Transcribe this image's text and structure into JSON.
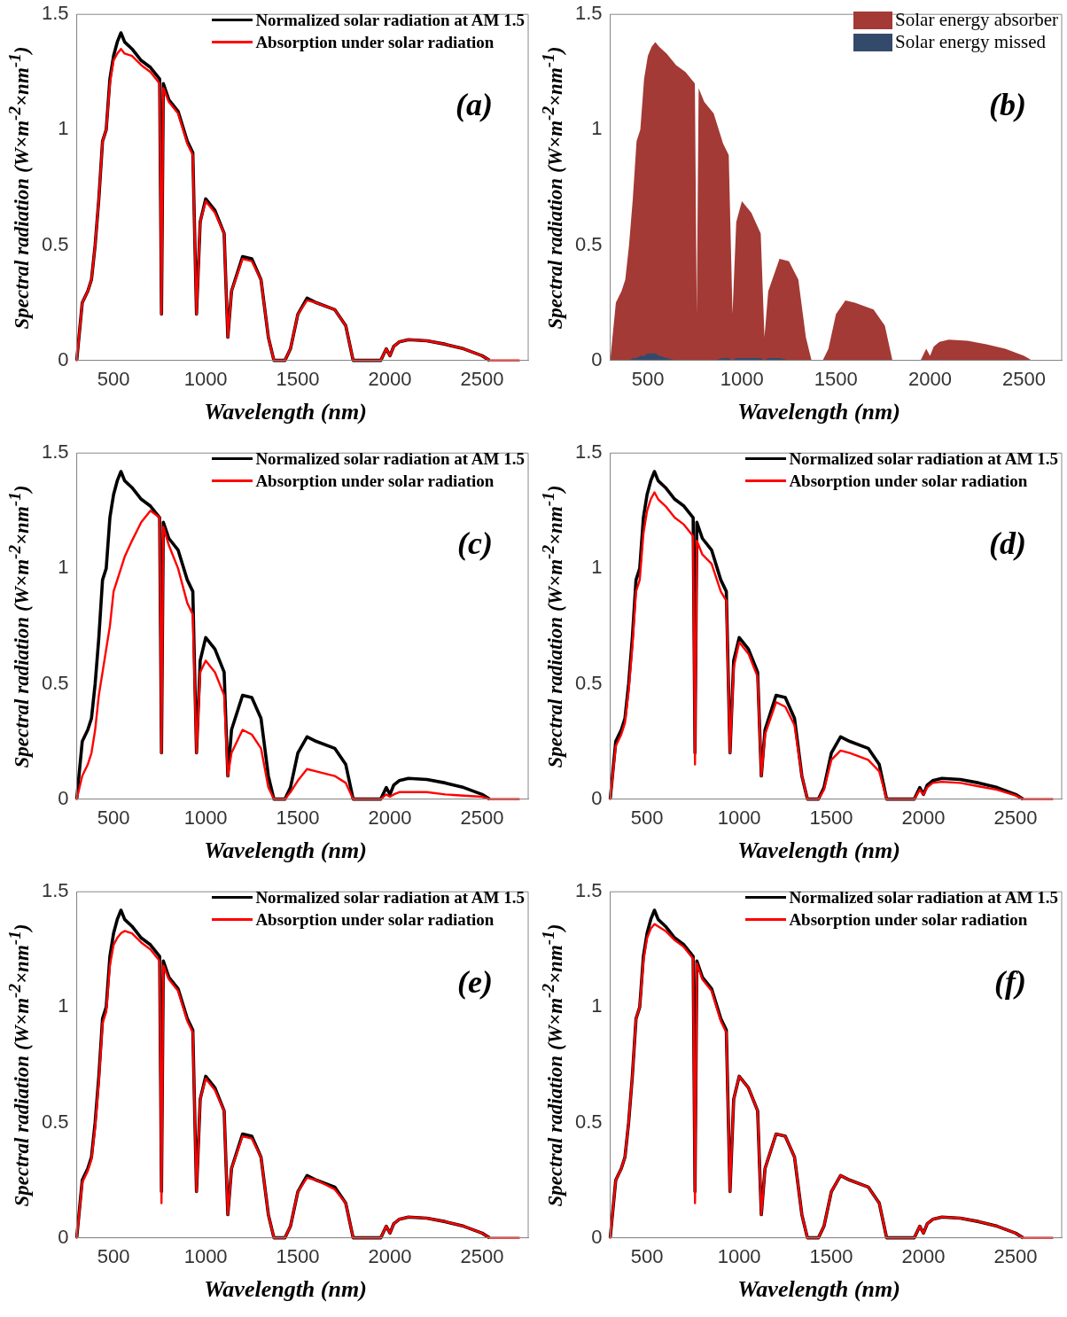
{
  "chart_data": [
    {
      "type": "line",
      "xlabel": "Wavelength (nm)",
      "ylabel": "Spectral radiation (W×m$^{-2}$×nm$^{-1}$)",
      "annotations": [
        "(a)"
      ],
      "xlim": [
        300,
        2750
      ],
      "ylim": [
        0,
        1.5
      ],
      "xticks": [
        500,
        1000,
        1500,
        2000,
        2500
      ],
      "yticks": [
        0,
        0.5,
        1,
        1.5
      ],
      "legend": "top right",
      "marker": "none",
      "x": [
        300,
        330,
        360,
        380,
        400,
        420,
        440,
        460,
        480,
        500,
        520,
        540,
        560,
        600,
        650,
        700,
        750,
        760,
        770,
        800,
        850,
        900,
        930,
        950,
        970,
        1000,
        1050,
        1100,
        1120,
        1140,
        1200,
        1250,
        1300,
        1340,
        1370,
        1430,
        1460,
        1500,
        1550,
        1600,
        1700,
        1760,
        1800,
        1950,
        1980,
        2000,
        2020,
        2050,
        2100,
        2200,
        2300,
        2400,
        2500,
        2540,
        2700
      ],
      "series": [
        {
          "name": "Normalized solar radiation at AM 1.5",
          "color": "#000000",
          "values": [
            0,
            0.25,
            0.3,
            0.35,
            0.5,
            0.7,
            0.95,
            1.0,
            1.22,
            1.32,
            1.38,
            1.42,
            1.38,
            1.35,
            1.3,
            1.27,
            1.22,
            0.2,
            1.2,
            1.13,
            1.08,
            0.95,
            0.9,
            0.2,
            0.6,
            0.7,
            0.65,
            0.55,
            0.1,
            0.3,
            0.45,
            0.44,
            0.35,
            0.1,
            0,
            0,
            0.05,
            0.2,
            0.27,
            0.25,
            0.22,
            0.15,
            0,
            0,
            0.05,
            0.02,
            0.06,
            0.08,
            0.09,
            0.085,
            0.07,
            0.05,
            0.02,
            0,
            null
          ]
        },
        {
          "name": "Absorption under solar radiation",
          "color": "#ff0000",
          "values": [
            0,
            0.25,
            0.3,
            0.35,
            0.5,
            0.7,
            0.95,
            1.0,
            1.2,
            1.3,
            1.33,
            1.35,
            1.33,
            1.32,
            1.28,
            1.25,
            1.2,
            0.2,
            1.18,
            1.12,
            1.07,
            0.94,
            0.89,
            0.2,
            0.6,
            0.69,
            0.64,
            0.55,
            0.1,
            0.3,
            0.44,
            0.43,
            0.35,
            0.1,
            0,
            0,
            0.05,
            0.2,
            0.26,
            0.25,
            0.22,
            0.15,
            0,
            0,
            0.05,
            0.02,
            0.06,
            0.08,
            0.09,
            0.085,
            0.07,
            0.05,
            0.02,
            0,
            0
          ]
        }
      ]
    },
    {
      "type": "area",
      "xlabel": "Wavelength (nm)",
      "ylabel": "Spectral radiation (W×m$^{-2}$×nm$^{-1}$)",
      "annotations": [
        "(b)"
      ],
      "xlim": [
        300,
        2700
      ],
      "ylim": [
        0,
        1.5
      ],
      "xticks": [
        500,
        1000,
        1500,
        2000,
        2500
      ],
      "yticks": [
        0,
        0.5,
        1,
        1.5
      ],
      "legend": "top right",
      "marker": "none",
      "x": [
        300,
        330,
        360,
        380,
        400,
        420,
        440,
        460,
        480,
        500,
        520,
        540,
        560,
        600,
        650,
        700,
        750,
        760,
        770,
        800,
        850,
        900,
        930,
        950,
        970,
        1000,
        1050,
        1100,
        1120,
        1140,
        1200,
        1250,
        1300,
        1340,
        1370,
        1430,
        1460,
        1500,
        1550,
        1600,
        1700,
        1760,
        1800,
        1950,
        1980,
        2000,
        2020,
        2050,
        2100,
        2200,
        2300,
        2400,
        2500,
        2540,
        2700
      ],
      "series": [
        {
          "name": "Solar energy absorber",
          "color": "#a33a35",
          "values": [
            0,
            0.25,
            0.3,
            0.35,
            0.5,
            0.7,
            0.95,
            1.0,
            1.22,
            1.32,
            1.36,
            1.38,
            1.36,
            1.33,
            1.28,
            1.25,
            1.2,
            0.2,
            1.18,
            1.12,
            1.07,
            0.94,
            0.89,
            0.2,
            0.6,
            0.69,
            0.64,
            0.55,
            0.1,
            0.3,
            0.44,
            0.43,
            0.35,
            0.1,
            0,
            0,
            0.05,
            0.2,
            0.26,
            0.25,
            0.22,
            0.15,
            0,
            0,
            0.05,
            0.02,
            0.06,
            0.08,
            0.09,
            0.085,
            0.07,
            0.05,
            0.02,
            0,
            0
          ]
        },
        {
          "name": "Solar energy missed",
          "color": "#344a6b",
          "values": [
            0,
            0,
            0,
            0,
            0,
            0.01,
            0.01,
            0.02,
            0.02,
            0.03,
            0.03,
            0.03,
            0.02,
            0.01,
            0,
            0,
            0,
            0,
            0,
            0,
            0,
            0.01,
            0.01,
            0,
            0.01,
            0.01,
            0.01,
            0.01,
            0,
            0.01,
            0.01,
            0,
            0,
            0,
            0,
            0,
            0,
            0,
            0,
            0,
            0,
            0,
            0,
            0,
            0,
            0,
            0,
            0,
            0,
            0,
            0,
            0,
            0,
            0,
            0
          ]
        }
      ]
    },
    {
      "type": "line",
      "xlabel": "Wavelength (nm)",
      "ylabel": "Spectral radiation (W×m$^{-2}$×nm$^{-1}$)",
      "annotations": [
        "(c)"
      ],
      "xlim": [
        300,
        2750
      ],
      "ylim": [
        0,
        1.5
      ],
      "xticks": [
        500,
        1000,
        1500,
        2000,
        2500
      ],
      "yticks": [
        0,
        0.5,
        1,
        1.5
      ],
      "legend": "top right",
      "marker": "none",
      "x": [
        300,
        330,
        360,
        380,
        400,
        420,
        440,
        460,
        480,
        500,
        520,
        540,
        560,
        600,
        650,
        700,
        750,
        760,
        770,
        800,
        850,
        900,
        930,
        950,
        970,
        1000,
        1050,
        1100,
        1120,
        1140,
        1200,
        1250,
        1300,
        1340,
        1370,
        1430,
        1460,
        1500,
        1550,
        1600,
        1700,
        1760,
        1800,
        1950,
        1980,
        2000,
        2020,
        2050,
        2100,
        2200,
        2300,
        2400,
        2500,
        2540,
        2700
      ],
      "series": [
        {
          "name": "Normalized solar radiation at AM 1.5",
          "color": "#000000",
          "values": [
            0,
            0.25,
            0.3,
            0.35,
            0.5,
            0.7,
            0.95,
            1.0,
            1.22,
            1.32,
            1.38,
            1.42,
            1.38,
            1.35,
            1.3,
            1.27,
            1.22,
            0.2,
            1.2,
            1.13,
            1.08,
            0.95,
            0.9,
            0.2,
            0.6,
            0.7,
            0.65,
            0.55,
            0.1,
            0.3,
            0.45,
            0.44,
            0.35,
            0.1,
            0,
            0,
            0.05,
            0.2,
            0.27,
            0.25,
            0.22,
            0.15,
            0,
            0,
            0.05,
            0.02,
            0.06,
            0.08,
            0.09,
            0.085,
            0.07,
            0.05,
            0.02,
            0,
            null
          ]
        },
        {
          "name": "Absorption under solar radiation",
          "color": "#ff0000",
          "values": [
            0,
            0.1,
            0.15,
            0.2,
            0.3,
            0.45,
            0.55,
            0.65,
            0.75,
            0.9,
            0.95,
            1.0,
            1.05,
            1.12,
            1.2,
            1.25,
            1.22,
            0.2,
            1.18,
            1.1,
            1.0,
            0.85,
            0.8,
            0.2,
            0.55,
            0.6,
            0.55,
            0.45,
            0.1,
            0.2,
            0.3,
            0.28,
            0.22,
            0.05,
            0,
            0,
            0.03,
            0.08,
            0.13,
            0.12,
            0.1,
            0.07,
            0,
            0,
            0.02,
            0.01,
            0.02,
            0.03,
            0.03,
            0.03,
            0.02,
            0.015,
            0.01,
            0,
            0
          ]
        }
      ]
    },
    {
      "type": "line",
      "xlabel": "Wavelength (nm)",
      "ylabel": "Spectral radiation (W×m$^{-2}$×nm$^{-1}$)",
      "annotations": [
        "(d)"
      ],
      "xlim": [
        300,
        2750
      ],
      "ylim": [
        0,
        1.5
      ],
      "xticks": [
        500,
        1000,
        1500,
        2000,
        2500
      ],
      "yticks": [
        0,
        0.5,
        1,
        1.5
      ],
      "legend": "top right",
      "marker": "none",
      "x": [
        300,
        330,
        360,
        380,
        400,
        420,
        440,
        460,
        480,
        500,
        520,
        540,
        560,
        600,
        650,
        700,
        750,
        760,
        770,
        800,
        850,
        900,
        930,
        950,
        970,
        1000,
        1050,
        1100,
        1120,
        1140,
        1200,
        1250,
        1300,
        1340,
        1370,
        1430,
        1460,
        1500,
        1550,
        1600,
        1700,
        1760,
        1800,
        1950,
        1980,
        2000,
        2020,
        2050,
        2100,
        2200,
        2300,
        2400,
        2500,
        2540,
        2700
      ],
      "series": [
        {
          "name": "Normalized solar radiation at AM 1.5",
          "color": "#000000",
          "values": [
            0,
            0.25,
            0.3,
            0.35,
            0.5,
            0.7,
            0.95,
            1.0,
            1.22,
            1.32,
            1.38,
            1.42,
            1.38,
            1.35,
            1.3,
            1.27,
            1.22,
            0.2,
            1.2,
            1.13,
            1.08,
            0.95,
            0.9,
            0.2,
            0.6,
            0.7,
            0.65,
            0.55,
            0.1,
            0.3,
            0.45,
            0.44,
            0.35,
            0.1,
            0,
            0,
            0.05,
            0.2,
            0.27,
            0.25,
            0.22,
            0.15,
            0,
            0,
            0.05,
            0.02,
            0.06,
            0.08,
            0.09,
            0.085,
            0.07,
            0.05,
            0.02,
            0,
            null
          ]
        },
        {
          "name": "Absorption under solar radiation",
          "color": "#ff0000",
          "values": [
            0,
            0.23,
            0.28,
            0.33,
            0.47,
            0.66,
            0.9,
            0.95,
            1.15,
            1.25,
            1.3,
            1.33,
            1.3,
            1.27,
            1.22,
            1.19,
            1.14,
            0.15,
            1.12,
            1.06,
            1.02,
            0.9,
            0.86,
            0.2,
            0.57,
            0.68,
            0.63,
            0.53,
            0.1,
            0.28,
            0.42,
            0.4,
            0.32,
            0.1,
            0,
            0,
            0.04,
            0.17,
            0.21,
            0.2,
            0.17,
            0.12,
            0,
            0,
            0.04,
            0.02,
            0.05,
            0.07,
            0.075,
            0.07,
            0.055,
            0.04,
            0.015,
            0,
            0
          ]
        }
      ]
    },
    {
      "type": "line",
      "xlabel": "Wavelength (nm)",
      "ylabel": "Spectral radiation (W×m$^{-2}$×nm$^{-1}$)",
      "annotations": [
        "(e)"
      ],
      "xlim": [
        300,
        2750
      ],
      "ylim": [
        0,
        1.5
      ],
      "xticks": [
        500,
        1000,
        1500,
        2000,
        2500
      ],
      "yticks": [
        0,
        0.5,
        1,
        1.5
      ],
      "legend": "top right",
      "marker": "none",
      "x": [
        300,
        330,
        360,
        380,
        400,
        420,
        440,
        460,
        480,
        500,
        520,
        540,
        560,
        600,
        650,
        700,
        750,
        760,
        770,
        800,
        850,
        900,
        930,
        950,
        970,
        1000,
        1050,
        1100,
        1120,
        1140,
        1200,
        1250,
        1300,
        1340,
        1370,
        1430,
        1460,
        1500,
        1550,
        1600,
        1700,
        1760,
        1800,
        1950,
        1980,
        2000,
        2020,
        2050,
        2100,
        2200,
        2300,
        2400,
        2500,
        2540,
        2700
      ],
      "series": [
        {
          "name": "Normalized solar radiation at AM 1.5",
          "color": "#000000",
          "values": [
            0,
            0.25,
            0.3,
            0.35,
            0.5,
            0.7,
            0.95,
            1.0,
            1.22,
            1.32,
            1.38,
            1.42,
            1.38,
            1.35,
            1.3,
            1.27,
            1.22,
            0.2,
            1.2,
            1.13,
            1.08,
            0.95,
            0.9,
            0.2,
            0.6,
            0.7,
            0.65,
            0.55,
            0.1,
            0.3,
            0.45,
            0.44,
            0.35,
            0.1,
            0,
            0,
            0.05,
            0.2,
            0.27,
            0.25,
            0.22,
            0.15,
            0,
            0,
            0.05,
            0.02,
            0.06,
            0.08,
            0.09,
            0.085,
            0.07,
            0.05,
            0.02,
            0,
            null
          ]
        },
        {
          "name": "Absorption under solar radiation",
          "color": "#ff0000",
          "values": [
            0,
            0.24,
            0.29,
            0.34,
            0.48,
            0.68,
            0.93,
            0.98,
            1.18,
            1.27,
            1.3,
            1.32,
            1.33,
            1.32,
            1.28,
            1.25,
            1.2,
            0.15,
            1.18,
            1.12,
            1.07,
            0.94,
            0.89,
            0.2,
            0.6,
            0.69,
            0.64,
            0.55,
            0.1,
            0.3,
            0.44,
            0.43,
            0.35,
            0.1,
            0,
            0,
            0.05,
            0.2,
            0.26,
            0.25,
            0.21,
            0.15,
            0,
            0,
            0.05,
            0.02,
            0.06,
            0.08,
            0.09,
            0.085,
            0.07,
            0.05,
            0.02,
            0,
            0
          ]
        }
      ]
    },
    {
      "type": "line",
      "xlabel": "Wavelength (nm)",
      "ylabel": "Spectral radiation (W×m$^{-2}$×nm$^{-1}$)",
      "annotations": [
        "(f)"
      ],
      "xlim": [
        300,
        2750
      ],
      "ylim": [
        0,
        1.5
      ],
      "xticks": [
        500,
        1000,
        1500,
        2000,
        2500
      ],
      "yticks": [
        0,
        0.5,
        1,
        1.5
      ],
      "legend": "top right",
      "marker": "none",
      "x": [
        300,
        330,
        360,
        380,
        400,
        420,
        440,
        460,
        480,
        500,
        520,
        540,
        560,
        600,
        650,
        700,
        750,
        760,
        770,
        800,
        850,
        900,
        930,
        950,
        970,
        1000,
        1050,
        1100,
        1120,
        1140,
        1200,
        1250,
        1300,
        1340,
        1370,
        1430,
        1460,
        1500,
        1550,
        1600,
        1700,
        1760,
        1800,
        1950,
        1980,
        2000,
        2020,
        2050,
        2100,
        2200,
        2300,
        2400,
        2500,
        2540,
        2700
      ],
      "series": [
        {
          "name": "Normalized solar radiation at AM 1.5",
          "color": "#000000",
          "values": [
            0,
            0.25,
            0.3,
            0.35,
            0.5,
            0.7,
            0.95,
            1.0,
            1.22,
            1.32,
            1.38,
            1.42,
            1.38,
            1.35,
            1.3,
            1.27,
            1.22,
            0.2,
            1.2,
            1.13,
            1.08,
            0.95,
            0.9,
            0.2,
            0.6,
            0.7,
            0.65,
            0.55,
            0.1,
            0.3,
            0.45,
            0.44,
            0.35,
            0.1,
            0,
            0,
            0.05,
            0.2,
            0.27,
            0.25,
            0.22,
            0.15,
            0,
            0,
            0.05,
            0.02,
            0.06,
            0.08,
            0.09,
            0.085,
            0.07,
            0.05,
            0.02,
            0,
            null
          ]
        },
        {
          "name": "Absorption under solar radiation",
          "color": "#ff0000",
          "values": [
            0,
            0.25,
            0.3,
            0.35,
            0.5,
            0.7,
            0.95,
            1.0,
            1.2,
            1.3,
            1.34,
            1.36,
            1.35,
            1.33,
            1.29,
            1.26,
            1.21,
            0.15,
            1.19,
            1.12,
            1.07,
            0.94,
            0.89,
            0.2,
            0.6,
            0.7,
            0.65,
            0.55,
            0.1,
            0.3,
            0.45,
            0.44,
            0.35,
            0.1,
            0,
            0,
            0.05,
            0.2,
            0.27,
            0.25,
            0.22,
            0.15,
            0,
            0,
            0.05,
            0.02,
            0.06,
            0.08,
            0.09,
            0.085,
            0.07,
            0.05,
            0.02,
            0,
            0
          ]
        }
      ]
    }
  ]
}
